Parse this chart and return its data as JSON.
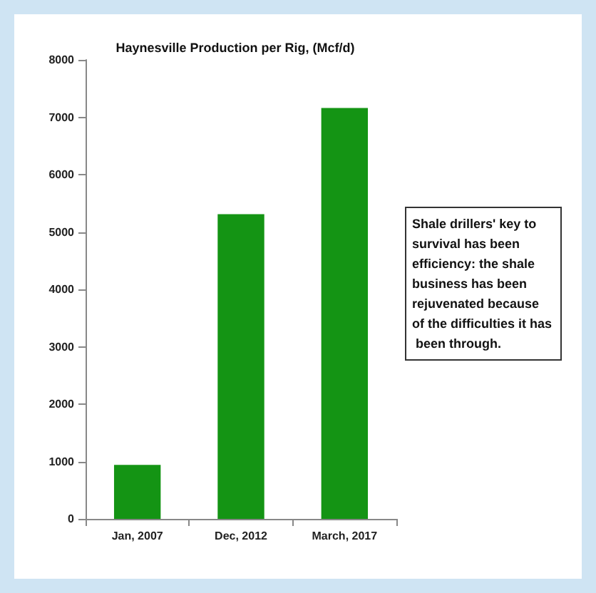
{
  "chart_data": {
    "type": "bar",
    "title": "Haynesville Production per Rig, (Mcf/d)",
    "categories": [
      "Jan, 2007",
      "Dec, 2012",
      "March, 2017"
    ],
    "values": [
      940,
      5310,
      7160
    ],
    "color": "#149414",
    "ylim": [
      0,
      8000
    ],
    "yticks": [
      0,
      1000,
      2000,
      3000,
      4000,
      5000,
      6000,
      7000,
      8000
    ],
    "grid": false,
    "annotations": [
      "Shale drillers' key to  survival has been efficiency: the shale business has been rejuvenated because of the difficulties it has been through."
    ]
  }
}
